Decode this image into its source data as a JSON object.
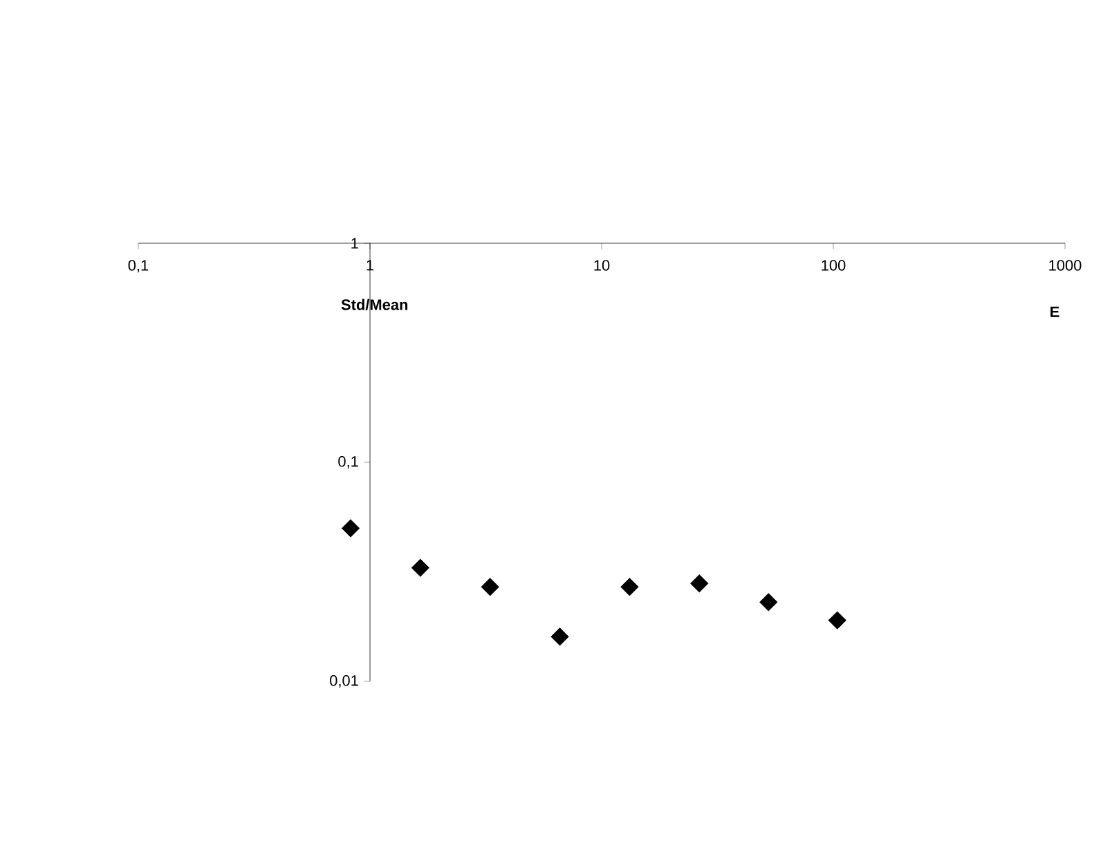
{
  "chart_data": {
    "type": "scatter",
    "xlabel": "E",
    "ylabel": "Std/Mean",
    "log": "xy",
    "marker": "diamond",
    "color": "#000000",
    "grid": false,
    "x": [
      0.825,
      1.65,
      3.3,
      6.6,
      13.2,
      26.4,
      52.5,
      104
    ],
    "values": [
      0.05,
      0.033,
      0.027,
      0.016,
      0.027,
      0.028,
      0.023,
      0.019
    ],
    "xlim": [
      0.1,
      1000
    ],
    "ylim": [
      0.01,
      1
    ],
    "xticks": [
      {
        "value": 0.1,
        "label": "0,1"
      },
      1,
      10,
      100,
      1000
    ],
    "yticks": [
      {
        "value": 0.01,
        "label": "0,01"
      },
      {
        "value": 0.1,
        "label": "0,1"
      },
      1
    ]
  }
}
